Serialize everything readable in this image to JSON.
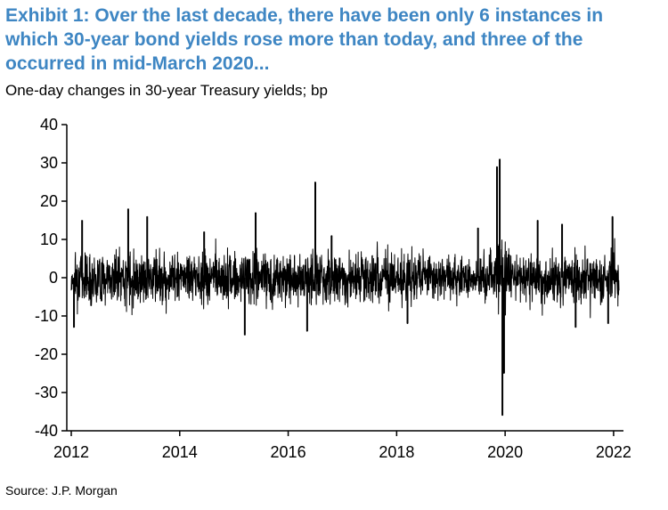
{
  "header": {
    "title": "Exhibit 1: Over the last decade, there have been only 6 instances in which 30-year bond yields rose more than today, and three of the occurred in mid-March 2020...",
    "subtitle": "One-day changes in 30-year Treasury yields; bp"
  },
  "footer": {
    "source": "Source: J.P. Morgan"
  },
  "colors": {
    "title": "#3e86c3",
    "series": "#000000"
  },
  "chart_data": {
    "type": "line",
    "title": "Exhibit 1: Over the last decade, there have been only 6 instances in which 30-year bond yields rose more than today, and three of the occurred in mid-March 2020...",
    "ylabel": "One-day changes in 30-year Treasury yields; bp",
    "xlabel": "",
    "xlim": [
      2012,
      2022.1
    ],
    "ylim": [
      -40,
      40
    ],
    "x_ticks": [
      "2012",
      "2014",
      "2016",
      "2018",
      "2020",
      "2022"
    ],
    "y_ticks": [
      "40",
      "30",
      "20",
      "10",
      "0",
      "-10",
      "-20",
      "-30",
      "-40"
    ],
    "grid": false,
    "legend": "none",
    "note": "Daily series of ~2,500 observations, mostly within about -10 to +10 bp; notable spikes listed in series.highlights",
    "series": [
      {
        "name": "",
        "highlights": [
          {
            "x": 2012.05,
            "y": -13
          },
          {
            "x": 2012.2,
            "y": 15
          },
          {
            "x": 2013.05,
            "y": 18
          },
          {
            "x": 2013.4,
            "y": 16
          },
          {
            "x": 2014.45,
            "y": 12
          },
          {
            "x": 2015.2,
            "y": -15
          },
          {
            "x": 2015.4,
            "y": 17
          },
          {
            "x": 2016.5,
            "y": 25
          },
          {
            "x": 2016.35,
            "y": -14
          },
          {
            "x": 2016.8,
            "y": 11
          },
          {
            "x": 2018.2,
            "y": -12
          },
          {
            "x": 2019.5,
            "y": 13
          },
          {
            "x": 2019.85,
            "y": 29
          },
          {
            "x": 2019.9,
            "y": 31
          },
          {
            "x": 2019.95,
            "y": -36
          },
          {
            "x": 2019.98,
            "y": -25
          },
          {
            "x": 2020.6,
            "y": 15
          },
          {
            "x": 2021.05,
            "y": 14
          },
          {
            "x": 2021.3,
            "y": -13
          },
          {
            "x": 2021.98,
            "y": 16
          },
          {
            "x": 2021.9,
            "y": -12
          }
        ]
      }
    ]
  }
}
